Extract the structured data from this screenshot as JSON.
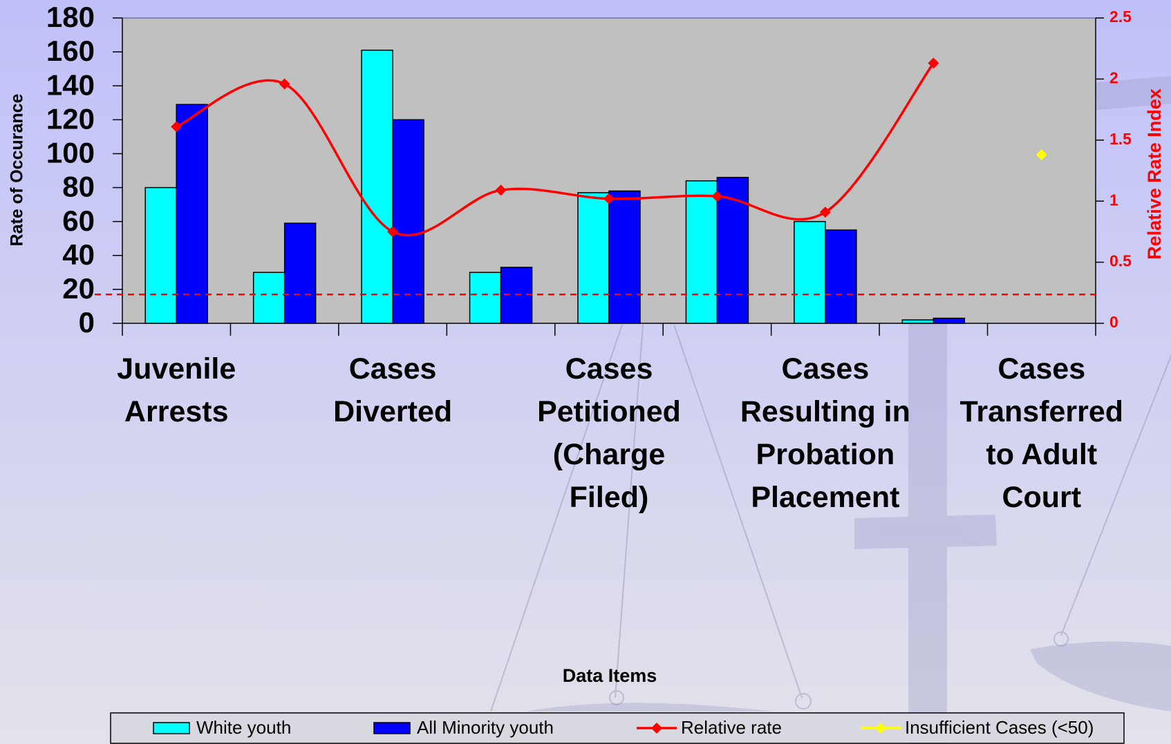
{
  "chart_data": {
    "type": "bar",
    "categories": [
      "Juvenile Arrests",
      null,
      "Cases Diverted",
      null,
      "Cases Petitioned (Charge Filed)",
      null,
      "Cases Resulting in Probation Placement",
      null,
      "Cases Transferred to Adult Court"
    ],
    "series": [
      {
        "name": "White youth",
        "type": "bar",
        "color": "#00ffff",
        "values": [
          80,
          30,
          161,
          30,
          77,
          84,
          60,
          2,
          null
        ]
      },
      {
        "name": "All Minority youth",
        "type": "bar",
        "color": "#0000ff",
        "values": [
          129,
          59,
          120,
          33,
          78,
          86,
          55,
          3,
          null
        ]
      },
      {
        "name": "Relative rate",
        "type": "line",
        "axis": "y2",
        "color": "#ff0000",
        "values": [
          1.61,
          1.96,
          0.75,
          1.09,
          1.02,
          1.04,
          0.91,
          2.13,
          null
        ]
      },
      {
        "name": "Insufficient Cases (<50)",
        "type": "line",
        "axis": "y2",
        "color": "#ffff00",
        "values": [
          null,
          null,
          null,
          null,
          null,
          null,
          null,
          null,
          1.38
        ]
      }
    ],
    "ylabel": "Rate of Occurance",
    "y2label": "Relative Rate Index",
    "xlabel": "Data Items",
    "ylim": [
      0,
      180
    ],
    "yticks": [
      0,
      20,
      40,
      60,
      80,
      100,
      120,
      140,
      160,
      180
    ],
    "y2lim": [
      0,
      2.5
    ],
    "y2ticks": [
      0,
      0.5,
      1,
      1.5,
      2,
      2.5
    ],
    "reference_line": {
      "value": 17,
      "color": "#ff0000"
    },
    "grid": false,
    "legend": "bottom"
  }
}
